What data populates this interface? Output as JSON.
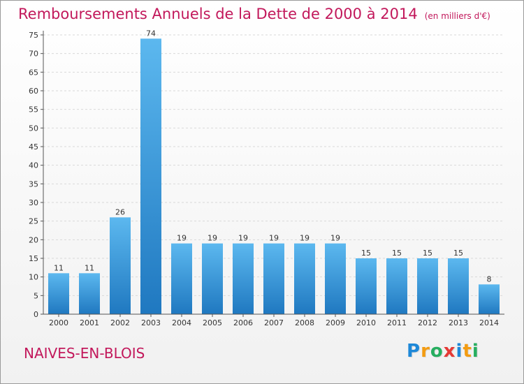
{
  "title": "Remboursements Annuels de la Dette de 2000 à 2014",
  "subtitle": "(en milliers d'€)",
  "commune": "NAIVES-EN-BLOIS",
  "logo": {
    "text": "Proxiti",
    "letters": [
      {
        "ch": "P",
        "color": "#1e88d8"
      },
      {
        "ch": "r",
        "color": "#f39c12"
      },
      {
        "ch": "o",
        "color": "#27ae60"
      },
      {
        "ch": "x",
        "color": "#e53935"
      },
      {
        "ch": "i",
        "color": "#1e88d8"
      },
      {
        "ch": "t",
        "color": "#f39c12"
      },
      {
        "ch": "i",
        "color": "#27ae60"
      }
    ]
  },
  "colors": {
    "bar_top": "#5cb8ef",
    "bar_bottom": "#1f78c0",
    "title": "#c2185b",
    "grid": "#d9d9d9"
  },
  "chart_data": {
    "type": "bar",
    "categories": [
      "2000",
      "2001",
      "2002",
      "2003",
      "2004",
      "2005",
      "2006",
      "2007",
      "2008",
      "2009",
      "2010",
      "2011",
      "2012",
      "2013",
      "2014"
    ],
    "values": [
      11,
      11,
      26,
      74,
      19,
      19,
      19,
      19,
      19,
      19,
      15,
      15,
      15,
      15,
      8
    ],
    "ylim": [
      0,
      75
    ],
    "yticks": [
      0,
      5,
      10,
      15,
      20,
      25,
      30,
      35,
      40,
      45,
      50,
      55,
      60,
      65,
      70,
      75
    ],
    "grid": true,
    "title": "Remboursements Annuels de la Dette de 2000 à 2014",
    "xlabel": "",
    "ylabel": ""
  }
}
